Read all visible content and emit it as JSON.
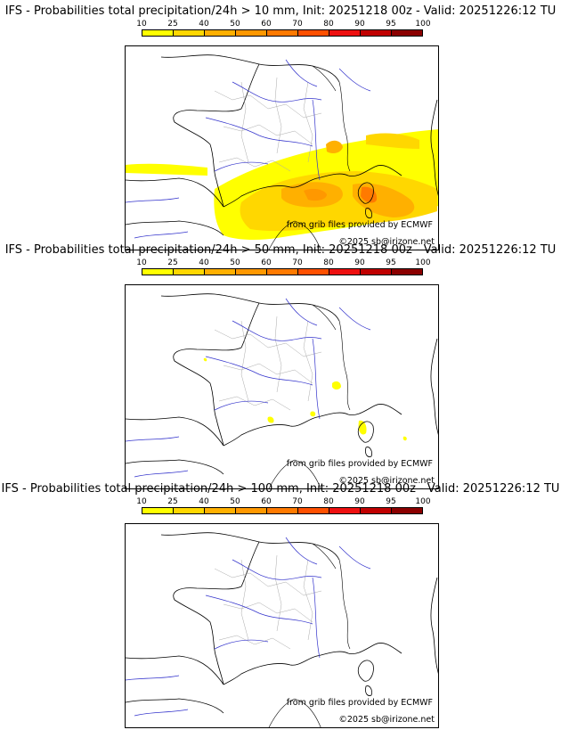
{
  "colorbar": {
    "ticks": [
      "10",
      "25",
      "40",
      "50",
      "60",
      "70",
      "80",
      "90",
      "95",
      "100"
    ],
    "colors": [
      "#ffff00",
      "#ffd700",
      "#ffb000",
      "#ff9800",
      "#ff7a00",
      "#ff5000",
      "#ee1010",
      "#c00000",
      "#8b0000",
      "#4a0000"
    ]
  },
  "panels": [
    {
      "title": "IFS - Probabilities total precipitation/24h > 10 mm, Init: 20251218 00z - Valid: 20251226:12 TU",
      "threshold_mm": 10,
      "credit_source": "from grib files provided by ECMWF",
      "credit_copyright": "©2025 sb@irizone.net"
    },
    {
      "title": "IFS - Probabilities total precipitation/24h > 50 mm, Init: 20251218 00z - Valid: 20251226:12 TU",
      "threshold_mm": 50,
      "credit_source": "from grib files provided by ECMWF",
      "credit_copyright": "©2025 sb@irizone.net"
    },
    {
      "title": "IFS - Probabilities total precipitation/24h > 100 mm, Init: 20251218 00z - Valid: 20251226:12 TU",
      "threshold_mm": 100,
      "credit_source": "from grib files provided by ECMWF",
      "credit_copyright": "©2025 sb@irizone.net"
    }
  ]
}
